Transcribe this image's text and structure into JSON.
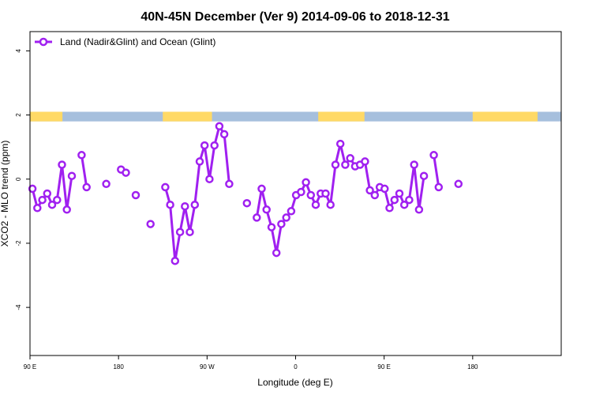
{
  "chart_data": {
    "type": "line",
    "title": "40N-45N December (Ver 9)   2014-09-06 to 2018-12-31",
    "xlabel": "Longitude (deg E)",
    "ylabel": "XCO2 - MLO trend (ppm)",
    "xlim": [
      90,
      630
    ],
    "ylim": [
      -5.5,
      4.6
    ],
    "x_ticks": [
      {
        "value": 90,
        "label": "90 E"
      },
      {
        "value": 180,
        "label": "180"
      },
      {
        "value": 270,
        "label": "90 W"
      },
      {
        "value": 360,
        "label": "0"
      },
      {
        "value": 450,
        "label": "90 E"
      },
      {
        "value": 540,
        "label": "180"
      }
    ],
    "y_ticks": [
      {
        "value": -4,
        "label": "-4"
      },
      {
        "value": -2,
        "label": "-2"
      },
      {
        "value": 0,
        "label": "0"
      },
      {
        "value": 2,
        "label": "2"
      },
      {
        "value": 4,
        "label": "4"
      }
    ],
    "legend": {
      "position": "top-left"
    },
    "colors": {
      "series": "#a020f0",
      "land": "#ffd966",
      "ocean": "#a6bfdd"
    },
    "landmask": {
      "y_range": [
        1.8,
        2.1
      ],
      "land_segments": [
        [
          90,
          123
        ],
        [
          225,
          275
        ],
        [
          383,
          430
        ],
        [
          540,
          606
        ]
      ]
    },
    "series": [
      {
        "name": "Land (Nadir&Glint) and Ocean (Glint)",
        "segments": [
          [
            [
              92.5,
              -0.3
            ],
            [
              97.5,
              -0.9
            ],
            [
              102.5,
              -0.65
            ],
            [
              107.5,
              -0.45
            ],
            [
              112.5,
              -0.8
            ],
            [
              117.5,
              -0.65
            ],
            [
              122.5,
              0.45
            ],
            [
              127.5,
              -0.95
            ],
            [
              132.5,
              0.1
            ]
          ],
          [
            [
              142.5,
              0.75
            ],
            [
              147.5,
              -0.25
            ]
          ],
          [
            [
              167.5,
              -0.15
            ]
          ],
          [
            [
              182.5,
              0.3
            ],
            [
              187.5,
              0.2
            ]
          ],
          [
            [
              197.5,
              -0.5
            ]
          ],
          [
            [
              212.5,
              -1.4
            ]
          ],
          [
            [
              227.5,
              -0.25
            ],
            [
              232.5,
              -0.8
            ],
            [
              237.5,
              -2.55
            ],
            [
              242.5,
              -1.65
            ],
            [
              247.5,
              -0.85
            ],
            [
              252.5,
              -1.65
            ],
            [
              257.5,
              -0.8
            ],
            [
              262.5,
              0.55
            ],
            [
              267.5,
              1.05
            ],
            [
              272.5,
              0.0
            ],
            [
              277.5,
              1.05
            ],
            [
              282.5,
              1.65
            ],
            [
              287.5,
              1.4
            ],
            [
              292.5,
              -0.15
            ]
          ],
          [
            [
              310.5,
              -0.75
            ]
          ],
          [
            [
              320.5,
              -1.2
            ],
            [
              325.5,
              -0.3
            ],
            [
              330.5,
              -0.95
            ],
            [
              335.5,
              -1.5
            ],
            [
              340.5,
              -2.3
            ],
            [
              345.5,
              -1.4
            ],
            [
              350.5,
              -1.2
            ],
            [
              355.5,
              -1.0
            ],
            [
              360.5,
              -0.5
            ],
            [
              365.5,
              -0.4
            ],
            [
              370.5,
              -0.1
            ],
            [
              375.5,
              -0.5
            ],
            [
              380.5,
              -0.8
            ],
            [
              385.5,
              -0.45
            ],
            [
              390.5,
              -0.45
            ],
            [
              395.5,
              -0.8
            ],
            [
              400.5,
              0.45
            ],
            [
              405.5,
              1.1
            ],
            [
              410.5,
              0.45
            ],
            [
              415.5,
              0.65
            ],
            [
              420.5,
              0.4
            ],
            [
              425.5,
              0.45
            ],
            [
              430.5,
              0.55
            ],
            [
              435.5,
              -0.35
            ],
            [
              440.5,
              -0.5
            ],
            [
              445.5,
              -0.25
            ],
            [
              450.5,
              -0.3
            ],
            [
              455.5,
              -0.9
            ],
            [
              460.5,
              -0.65
            ],
            [
              465.5,
              -0.45
            ],
            [
              470.5,
              -0.8
            ],
            [
              475.5,
              -0.65
            ],
            [
              480.5,
              0.45
            ],
            [
              485.5,
              -0.95
            ],
            [
              490.5,
              0.1
            ]
          ],
          [
            [
              500.5,
              0.75
            ],
            [
              505.5,
              -0.25
            ]
          ],
          [
            [
              525.5,
              -0.15
            ]
          ]
        ]
      }
    ]
  }
}
